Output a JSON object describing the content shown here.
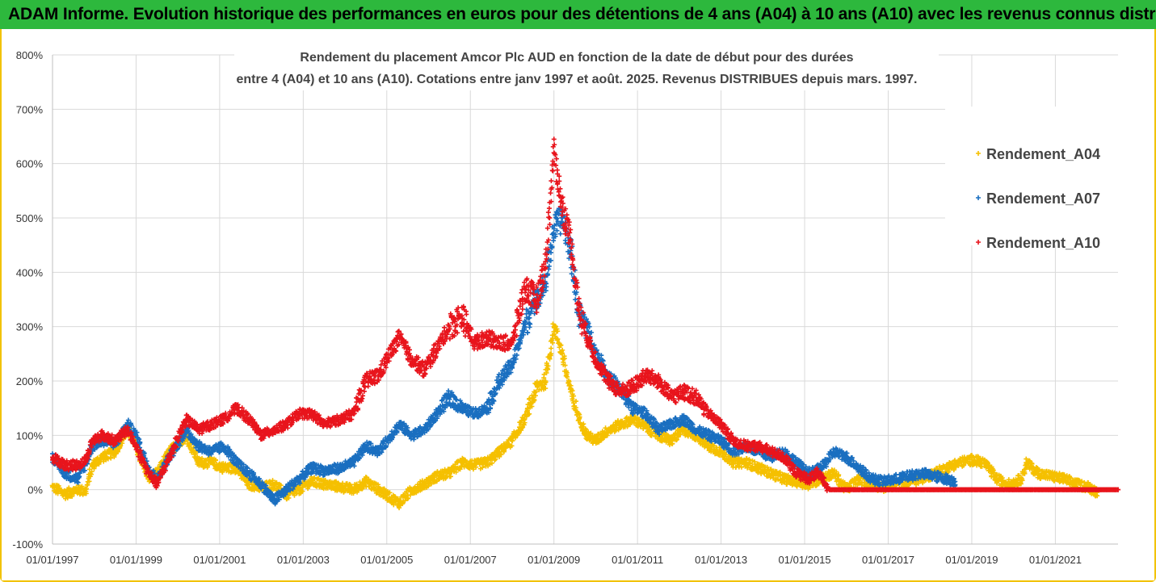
{
  "banner": {
    "title": "ADAM Informe. Evolution historique des performances en euros pour des détentions de 4 ans (A04) à 10 ans (A10) avec les revenus connus distribués"
  },
  "colors": {
    "banner_bg": "#2db83d",
    "frame": "#f2c200",
    "A04": "#f5c000",
    "A07": "#1a6fc0",
    "A10": "#e8141c",
    "grid": "#d9d9d9"
  },
  "chart_data": {
    "type": "scatter",
    "title_lines": [
      "Rendement du placement Amcor Plc AUD en fonction de la date de début pour des durées",
      "entre 4 (A04) et 10 ans (A10). Cotations entre janv 1997 et août. 2025. Revenus DISTRIBUES depuis mars. 1997."
    ],
    "y_ticks": [
      "-100%",
      "0%",
      "100%",
      "200%",
      "300%",
      "400%",
      "500%",
      "600%",
      "700%",
      "800%"
    ],
    "ylim": [
      -100,
      800
    ],
    "x_ticks": [
      "01/01/1997",
      "01/01/1999",
      "01/01/2001",
      "01/01/2003",
      "01/01/2005",
      "01/01/2007",
      "01/01/2009",
      "01/01/2011",
      "01/01/2013",
      "01/01/2015",
      "01/01/2017",
      "01/01/2019",
      "01/01/2021"
    ],
    "xlim": [
      1997.0,
      2022.5
    ],
    "grid": true,
    "legend_position": "top-right",
    "marker": "+",
    "series": [
      {
        "name": "Rendement_A04",
        "color": "#f5c000",
        "end": 2022.0,
        "points": [
          [
            1997.0,
            5
          ],
          [
            1997.3,
            -8
          ],
          [
            1997.6,
            0
          ],
          [
            1997.8,
            -3
          ],
          [
            1997.95,
            45
          ],
          [
            1998.2,
            60
          ],
          [
            1998.5,
            70
          ],
          [
            1998.8,
            110
          ],
          [
            1999.0,
            80
          ],
          [
            1999.3,
            20
          ],
          [
            1999.5,
            30
          ],
          [
            1999.8,
            70
          ],
          [
            2000.2,
            100
          ],
          [
            2000.5,
            50
          ],
          [
            2000.8,
            50
          ],
          [
            2001.1,
            40
          ],
          [
            2001.4,
            40
          ],
          [
            2001.7,
            10
          ],
          [
            2002.0,
            5
          ],
          [
            2002.3,
            10
          ],
          [
            2002.6,
            -10
          ],
          [
            2002.9,
            0
          ],
          [
            2003.2,
            15
          ],
          [
            2003.5,
            10
          ],
          [
            2003.9,
            5
          ],
          [
            2004.2,
            0
          ],
          [
            2004.5,
            15
          ],
          [
            2004.8,
            0
          ],
          [
            2005.0,
            -10
          ],
          [
            2005.3,
            -25
          ],
          [
            2005.6,
            0
          ],
          [
            2005.9,
            10
          ],
          [
            2006.2,
            25
          ],
          [
            2006.5,
            30
          ],
          [
            2006.8,
            50
          ],
          [
            2007.1,
            45
          ],
          [
            2007.4,
            50
          ],
          [
            2007.7,
            70
          ],
          [
            2008.0,
            90
          ],
          [
            2008.3,
            130
          ],
          [
            2008.6,
            190
          ],
          [
            2008.8,
            200
          ],
          [
            2009.0,
            300
          ],
          [
            2009.2,
            250
          ],
          [
            2009.4,
            180
          ],
          [
            2009.6,
            130
          ],
          [
            2009.8,
            100
          ],
          [
            2010.0,
            90
          ],
          [
            2010.3,
            110
          ],
          [
            2010.6,
            120
          ],
          [
            2010.9,
            130
          ],
          [
            2011.2,
            115
          ],
          [
            2011.5,
            100
          ],
          [
            2011.8,
            90
          ],
          [
            2012.1,
            110
          ],
          [
            2012.4,
            100
          ],
          [
            2012.7,
            80
          ],
          [
            2013.0,
            70
          ],
          [
            2013.3,
            50
          ],
          [
            2013.6,
            50
          ],
          [
            2013.9,
            40
          ],
          [
            2014.2,
            30
          ],
          [
            2014.5,
            20
          ],
          [
            2014.8,
            15
          ],
          [
            2015.1,
            10
          ],
          [
            2015.4,
            20
          ],
          [
            2015.7,
            30
          ],
          [
            2016.0,
            0
          ],
          [
            2016.3,
            20
          ],
          [
            2016.6,
            10
          ],
          [
            2016.9,
            5
          ],
          [
            2017.2,
            10
          ],
          [
            2017.5,
            15
          ],
          [
            2017.8,
            20
          ],
          [
            2018.1,
            30
          ],
          [
            2018.4,
            40
          ],
          [
            2018.7,
            50
          ],
          [
            2019.0,
            55
          ],
          [
            2019.3,
            50
          ],
          [
            2019.6,
            20
          ],
          [
            2019.9,
            10
          ],
          [
            2020.2,
            20
          ],
          [
            2020.3,
            50
          ],
          [
            2020.6,
            30
          ],
          [
            2020.9,
            25
          ],
          [
            2021.2,
            20
          ],
          [
            2021.5,
            10
          ],
          [
            2021.8,
            5
          ],
          [
            2022.0,
            -5
          ]
        ]
      },
      {
        "name": "Rendement_A07",
        "color": "#1a6fc0",
        "end": 2018.6,
        "points": [
          [
            1997.0,
            60
          ],
          [
            1997.3,
            30
          ],
          [
            1997.6,
            20
          ],
          [
            1997.8,
            50
          ],
          [
            1997.95,
            80
          ],
          [
            1998.2,
            90
          ],
          [
            1998.5,
            85
          ],
          [
            1998.8,
            120
          ],
          [
            1999.0,
            100
          ],
          [
            1999.3,
            40
          ],
          [
            1999.5,
            20
          ],
          [
            1999.8,
            60
          ],
          [
            2000.2,
            110
          ],
          [
            2000.5,
            80
          ],
          [
            2000.8,
            70
          ],
          [
            2001.1,
            80
          ],
          [
            2001.4,
            50
          ],
          [
            2001.7,
            30
          ],
          [
            2002.0,
            10
          ],
          [
            2002.3,
            -20
          ],
          [
            2002.6,
            0
          ],
          [
            2002.9,
            20
          ],
          [
            2003.2,
            40
          ],
          [
            2003.5,
            35
          ],
          [
            2003.9,
            40
          ],
          [
            2004.2,
            50
          ],
          [
            2004.5,
            80
          ],
          [
            2004.8,
            70
          ],
          [
            2005.0,
            90
          ],
          [
            2005.3,
            120
          ],
          [
            2005.6,
            100
          ],
          [
            2005.9,
            110
          ],
          [
            2006.2,
            140
          ],
          [
            2006.5,
            170
          ],
          [
            2006.8,
            150
          ],
          [
            2007.1,
            140
          ],
          [
            2007.4,
            150
          ],
          [
            2007.7,
            200
          ],
          [
            2008.0,
            230
          ],
          [
            2008.3,
            300
          ],
          [
            2008.6,
            360
          ],
          [
            2008.8,
            380
          ],
          [
            2009.0,
            480
          ],
          [
            2009.2,
            500
          ],
          [
            2009.4,
            440
          ],
          [
            2009.6,
            320
          ],
          [
            2009.8,
            300
          ],
          [
            2010.0,
            250
          ],
          [
            2010.3,
            210
          ],
          [
            2010.6,
            180
          ],
          [
            2010.9,
            150
          ],
          [
            2011.2,
            140
          ],
          [
            2011.5,
            110
          ],
          [
            2011.8,
            120
          ],
          [
            2012.1,
            130
          ],
          [
            2012.4,
            110
          ],
          [
            2012.7,
            100
          ],
          [
            2013.0,
            90
          ],
          [
            2013.3,
            70
          ],
          [
            2013.6,
            80
          ],
          [
            2013.9,
            70
          ],
          [
            2014.2,
            60
          ],
          [
            2014.5,
            70
          ],
          [
            2014.8,
            50
          ],
          [
            2015.1,
            30
          ],
          [
            2015.4,
            40
          ],
          [
            2015.7,
            70
          ],
          [
            2016.0,
            60
          ],
          [
            2016.3,
            40
          ],
          [
            2016.6,
            20
          ],
          [
            2016.9,
            15
          ],
          [
            2017.2,
            20
          ],
          [
            2017.5,
            25
          ],
          [
            2017.8,
            30
          ],
          [
            2018.1,
            25
          ],
          [
            2018.4,
            20
          ],
          [
            2018.6,
            15
          ]
        ]
      },
      {
        "name": "Rendement_A10",
        "color": "#e8141c",
        "end": 2022.5,
        "points": [
          [
            1997.0,
            60
          ],
          [
            1997.3,
            45
          ],
          [
            1997.6,
            45
          ],
          [
            1997.8,
            55
          ],
          [
            1997.95,
            90
          ],
          [
            1998.2,
            100
          ],
          [
            1998.5,
            90
          ],
          [
            1998.8,
            110
          ],
          [
            1999.0,
            80
          ],
          [
            1999.3,
            30
          ],
          [
            1999.5,
            10
          ],
          [
            1999.8,
            60
          ],
          [
            2000.2,
            130
          ],
          [
            2000.5,
            110
          ],
          [
            2000.8,
            120
          ],
          [
            2001.1,
            130
          ],
          [
            2001.4,
            150
          ],
          [
            2001.7,
            130
          ],
          [
            2002.0,
            100
          ],
          [
            2002.3,
            110
          ],
          [
            2002.6,
            120
          ],
          [
            2002.9,
            140
          ],
          [
            2003.2,
            140
          ],
          [
            2003.5,
            120
          ],
          [
            2003.9,
            130
          ],
          [
            2004.2,
            140
          ],
          [
            2004.5,
            200
          ],
          [
            2004.8,
            210
          ],
          [
            2005.0,
            240
          ],
          [
            2005.3,
            280
          ],
          [
            2005.6,
            240
          ],
          [
            2005.9,
            220
          ],
          [
            2006.2,
            260
          ],
          [
            2006.5,
            300
          ],
          [
            2006.8,
            320
          ],
          [
            2007.1,
            270
          ],
          [
            2007.4,
            280
          ],
          [
            2007.7,
            270
          ],
          [
            2008.0,
            270
          ],
          [
            2008.3,
            370
          ],
          [
            2008.6,
            350
          ],
          [
            2008.8,
            420
          ],
          [
            2009.0,
            620
          ],
          [
            2009.2,
            520
          ],
          [
            2009.4,
            460
          ],
          [
            2009.6,
            330
          ],
          [
            2009.8,
            280
          ],
          [
            2010.0,
            240
          ],
          [
            2010.3,
            200
          ],
          [
            2010.6,
            180
          ],
          [
            2010.9,
            190
          ],
          [
            2011.2,
            210
          ],
          [
            2011.5,
            200
          ],
          [
            2011.8,
            170
          ],
          [
            2012.1,
            180
          ],
          [
            2012.4,
            170
          ],
          [
            2012.7,
            140
          ],
          [
            2013.0,
            120
          ],
          [
            2013.3,
            90
          ],
          [
            2013.6,
            80
          ],
          [
            2013.9,
            80
          ],
          [
            2014.2,
            70
          ],
          [
            2014.5,
            60
          ],
          [
            2014.8,
            30
          ],
          [
            2015.1,
            20
          ],
          [
            2015.3,
            30
          ],
          [
            2015.6,
            0
          ],
          [
            2016.0,
            0
          ],
          [
            2017.0,
            0
          ],
          [
            2018.0,
            0
          ],
          [
            2019.0,
            0
          ],
          [
            2020.0,
            0
          ],
          [
            2021.0,
            0
          ],
          [
            2022.0,
            0
          ],
          [
            2022.5,
            0
          ]
        ]
      }
    ]
  }
}
